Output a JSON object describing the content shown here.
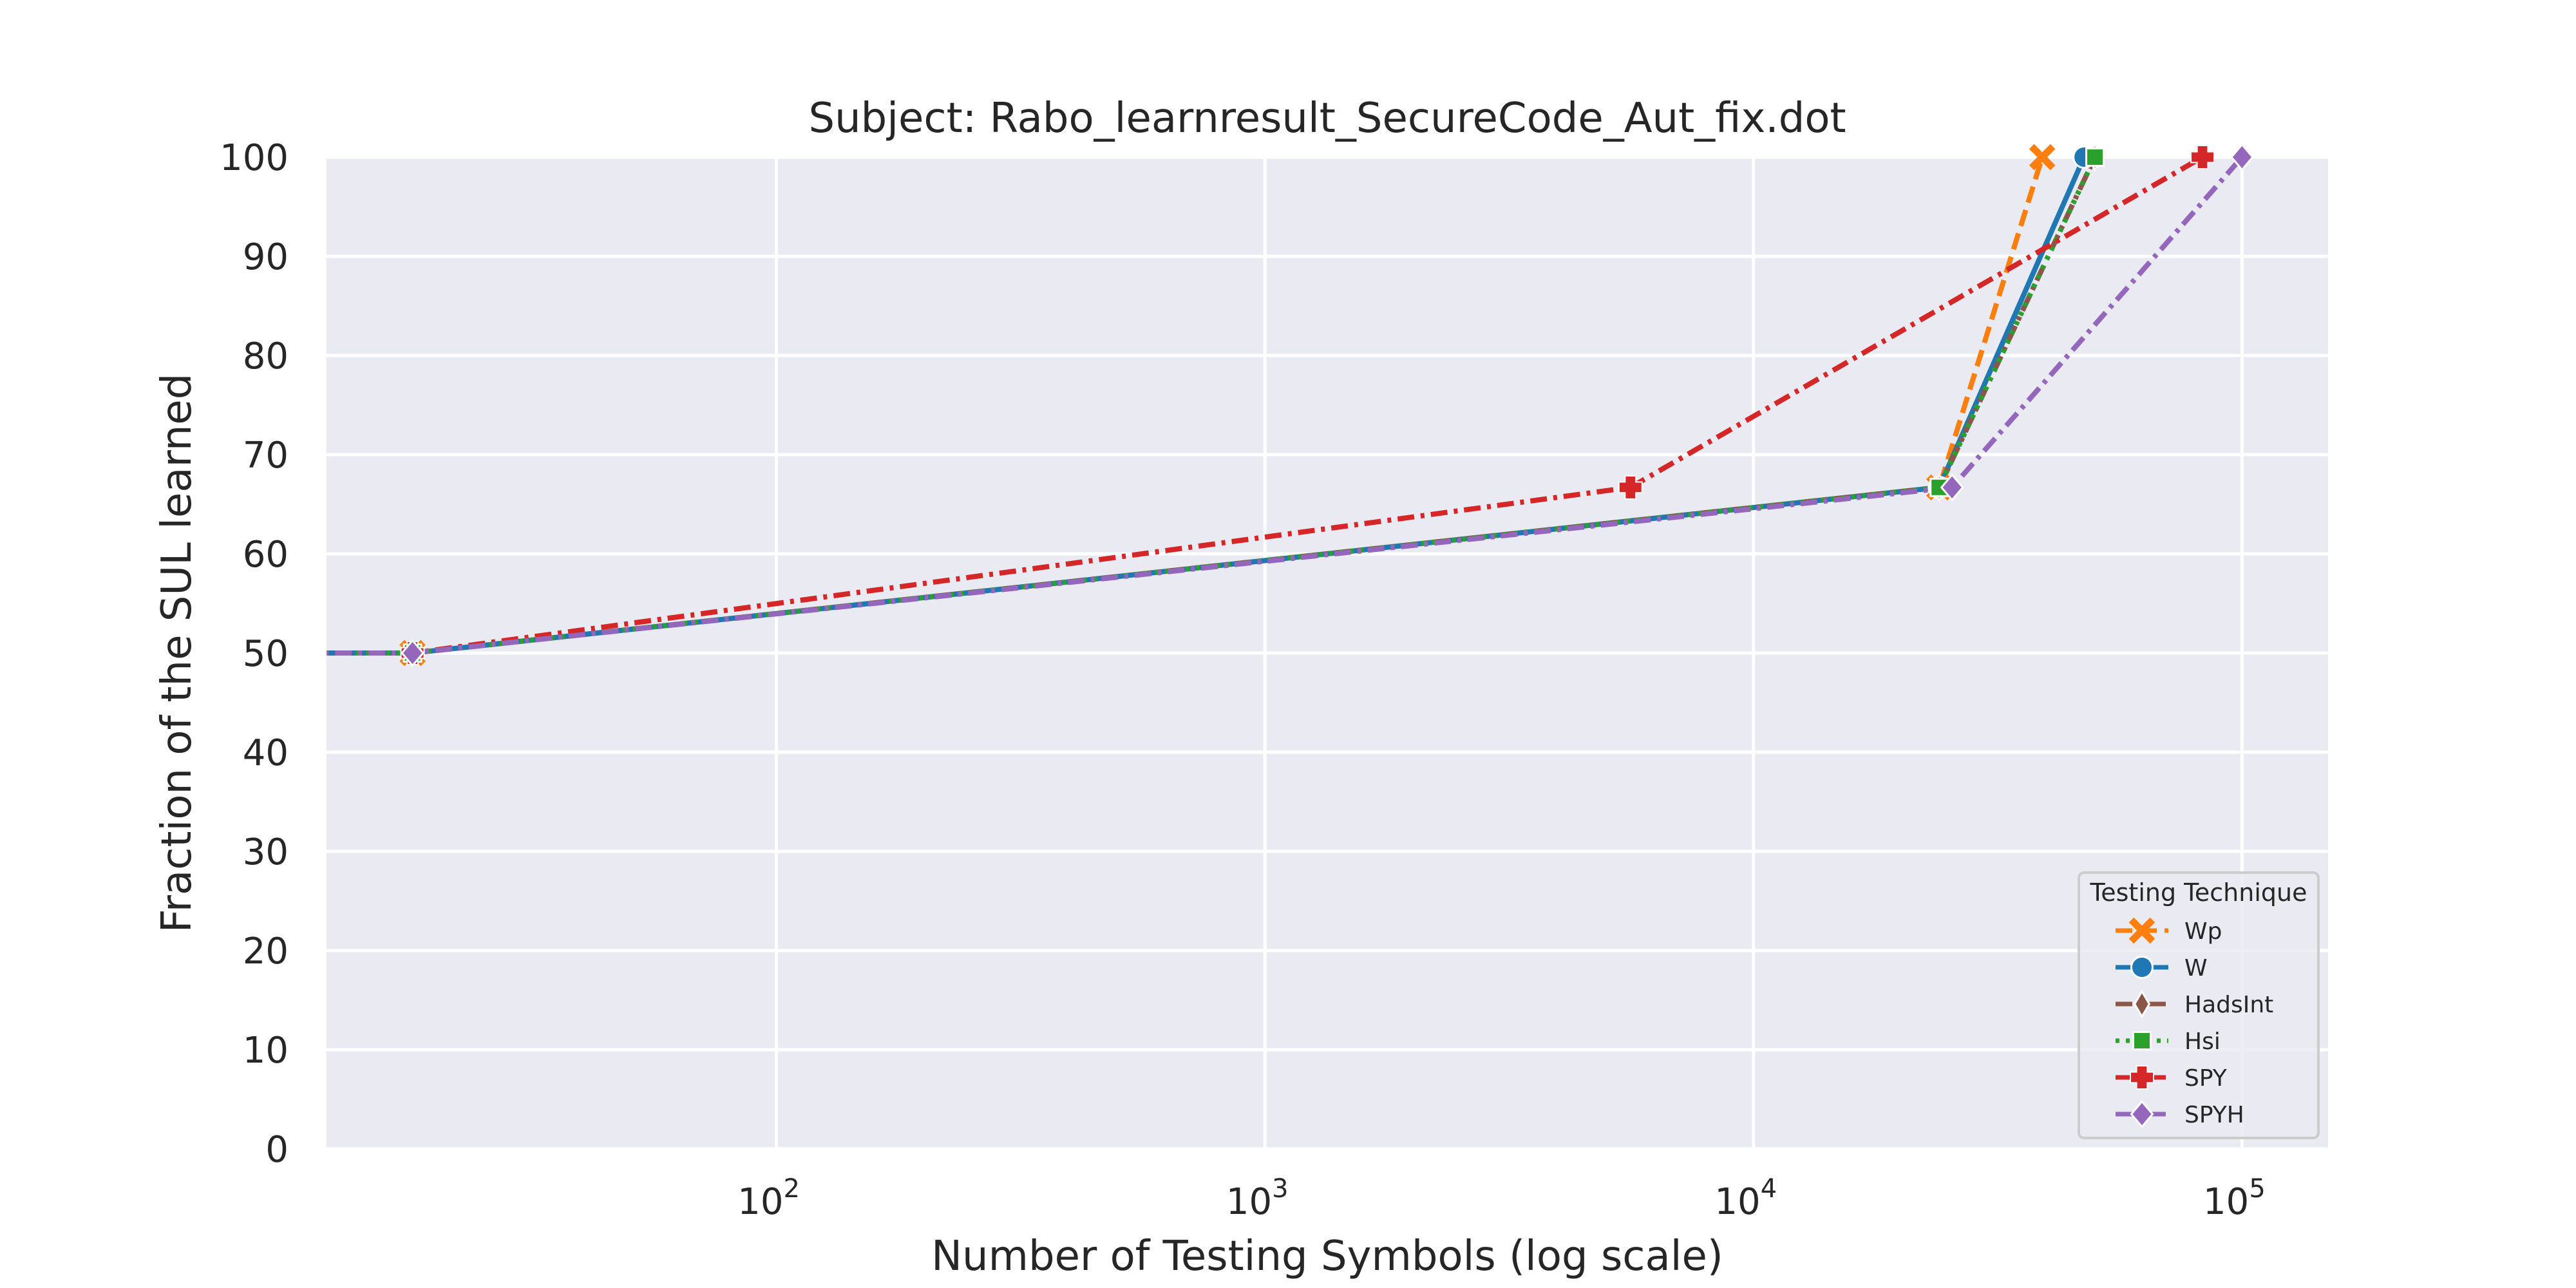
{
  "chart_data": {
    "type": "line",
    "title": "Subject: Rabo_learnresult_SecureCode_Aut_fix.dot",
    "xlabel": "Number of Testing Symbols (log scale)",
    "ylabel": "Fraction of the SUL learned",
    "xscale": "log",
    "xlim": [
      12,
      150000
    ],
    "ylim": [
      0,
      100
    ],
    "x_ticks": [
      {
        "value": 100,
        "label": "10",
        "exp": "2"
      },
      {
        "value": 1000,
        "label": "10",
        "exp": "3"
      },
      {
        "value": 10000,
        "label": "10",
        "exp": "4"
      },
      {
        "value": 100000,
        "label": "10",
        "exp": "5"
      }
    ],
    "y_ticks": [
      0,
      10,
      20,
      30,
      40,
      50,
      60,
      70,
      80,
      90,
      100
    ],
    "y_tick_labels": [
      "0",
      "10",
      "20",
      "30",
      "40",
      "50",
      "60",
      "70",
      "80",
      "90",
      "100"
    ],
    "grid": true,
    "legend": {
      "title": "Testing Technique",
      "position": "lower-right"
    },
    "series": [
      {
        "name": "Wp",
        "color": "#ff7f0e",
        "dash": "dashed",
        "marker": "X",
        "x": [
          1,
          18,
          24000,
          39000
        ],
        "y": [
          50,
          50,
          66.7,
          100
        ]
      },
      {
        "name": "W",
        "color": "#1f77b4",
        "dash": "solid",
        "marker": "circle",
        "x": [
          1,
          18,
          24000,
          47500
        ],
        "y": [
          50,
          50,
          66.7,
          100
        ]
      },
      {
        "name": "HadsInt",
        "color": "#8c564b",
        "dash": "dashdot",
        "marker": "thin_diamond",
        "x": [
          1,
          18,
          24000,
          50000
        ],
        "y": [
          50,
          50,
          66.7,
          100
        ]
      },
      {
        "name": "Hsi",
        "color": "#2ca02c",
        "dash": "dotted",
        "marker": "square",
        "x": [
          1,
          18,
          24000,
          50000
        ],
        "y": [
          50,
          50,
          66.7,
          100
        ]
      },
      {
        "name": "SPY",
        "color": "#d62728",
        "dash": "dashdot",
        "marker": "plus",
        "x": [
          1,
          18,
          5600,
          83000
        ],
        "y": [
          50,
          50,
          66.7,
          100
        ]
      },
      {
        "name": "SPYH",
        "color": "#9467bd",
        "dash": "dashdot",
        "marker": "diamond",
        "x": [
          1,
          18,
          25500,
          100000
        ],
        "y": [
          50,
          50,
          66.7,
          100
        ]
      }
    ]
  }
}
